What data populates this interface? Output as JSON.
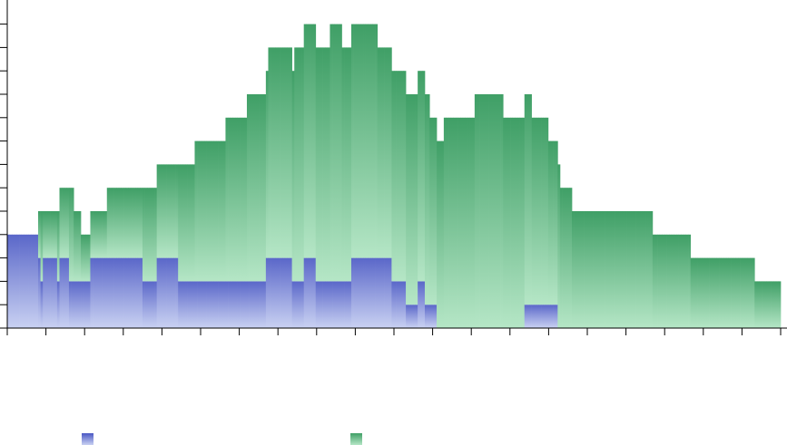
{
  "chart_data": {
    "type": "bar",
    "stacked": true,
    "title": "",
    "xlabel": "",
    "ylabel": "",
    "grid": false,
    "legend_position": "bottom",
    "bar_values_note": "",
    "series": [
      {
        "name": "",
        "color_light": "#c9d1f2",
        "color_dark": "#5a67c9",
        "values": [
          4,
          4,
          4,
          4,
          4,
          4,
          4,
          4,
          4,
          4,
          4,
          4,
          4,
          3,
          2,
          3,
          3,
          3,
          3,
          3,
          3,
          2,
          3,
          3,
          3,
          3,
          2,
          2,
          2,
          2,
          2,
          2,
          2,
          2,
          2,
          3,
          3,
          3,
          3,
          3,
          3,
          3,
          3,
          3,
          3,
          3,
          3,
          3,
          3,
          3,
          3,
          3,
          3,
          3,
          3,
          3,
          3,
          2,
          2,
          2,
          2,
          2,
          2,
          3,
          3,
          3,
          3,
          3,
          3,
          3,
          3,
          3,
          2,
          2,
          2,
          2,
          2,
          2,
          2,
          2,
          2,
          2,
          2,
          2,
          2,
          2,
          2,
          2,
          2,
          2,
          2,
          2,
          2,
          2,
          2,
          2,
          2,
          2,
          2,
          2,
          2,
          2,
          2,
          2,
          2,
          2,
          2,
          2,
          2,
          3,
          3,
          3,
          3,
          3,
          3,
          3,
          3,
          3,
          3,
          3,
          2,
          2,
          2,
          2,
          2,
          3,
          3,
          3,
          3,
          3,
          2,
          2,
          2,
          2,
          2,
          2,
          2,
          2,
          2,
          2,
          2,
          2,
          2,
          2,
          2,
          3,
          3,
          3,
          3,
          3,
          3,
          3,
          3,
          3,
          3,
          3,
          3,
          3,
          3,
          3,
          3,
          3,
          2,
          2,
          2,
          2,
          2,
          2,
          1,
          1,
          1,
          1,
          1,
          2,
          2,
          2,
          1,
          1,
          1,
          1,
          1,
          0,
          0,
          0,
          0,
          0,
          0,
          0,
          0,
          0,
          0,
          0,
          0,
          0,
          0,
          0,
          0,
          0,
          0,
          0,
          0,
          0,
          0,
          0,
          0,
          0,
          0,
          0,
          0,
          0,
          0,
          0,
          0,
          0,
          0,
          0,
          0,
          0,
          1,
          1,
          1,
          1,
          1,
          1,
          1,
          1,
          1,
          1,
          1,
          1,
          1,
          1,
          0,
          0,
          0,
          0,
          0,
          0,
          0,
          0,
          0,
          0,
          0,
          0,
          0,
          0,
          0,
          0,
          0,
          0,
          0,
          0,
          0,
          0,
          0,
          0,
          0,
          0,
          0,
          0,
          0,
          0,
          0,
          0,
          0,
          0,
          0,
          0,
          0,
          0,
          0,
          0,
          0,
          0,
          0,
          0,
          0,
          0,
          0,
          0,
          0,
          0,
          0,
          0,
          0,
          0,
          0,
          0,
          0,
          0,
          0,
          0,
          0,
          0,
          0,
          0,
          0,
          0,
          0,
          0,
          0,
          0,
          0,
          0,
          0,
          0,
          0,
          0,
          0,
          0,
          0,
          0,
          0,
          0,
          0,
          0,
          0,
          0,
          0,
          0,
          0,
          0,
          0,
          0,
          0,
          0
        ]
      },
      {
        "name": "",
        "color_light": "#b5e6c6",
        "color_dark": "#3f9f66",
        "values": [
          0,
          0,
          0,
          0,
          0,
          0,
          0,
          0,
          0,
          0,
          0,
          0,
          0,
          2,
          3,
          2,
          2,
          2,
          2,
          2,
          2,
          3,
          3,
          3,
          3,
          3,
          4,
          4,
          3,
          3,
          3,
          2,
          2,
          2,
          2,
          2,
          2,
          2,
          2,
          2,
          2,
          2,
          3,
          3,
          3,
          3,
          3,
          3,
          3,
          3,
          3,
          3,
          3,
          3,
          3,
          3,
          3,
          4,
          4,
          4,
          4,
          4,
          4,
          4,
          4,
          4,
          4,
          4,
          4,
          4,
          4,
          4,
          5,
          5,
          5,
          5,
          5,
          5,
          5,
          6,
          6,
          6,
          6,
          6,
          6,
          6,
          6,
          6,
          6,
          6,
          6,
          6,
          7,
          7,
          7,
          7,
          7,
          7,
          7,
          7,
          7,
          8,
          8,
          8,
          8,
          8,
          8,
          8,
          8,
          8,
          9,
          9,
          9,
          9,
          9,
          9,
          9,
          9,
          9,
          9,
          9,
          10,
          10,
          10,
          10,
          10,
          10,
          10,
          10,
          10,
          10,
          10,
          10,
          10,
          10,
          10,
          11,
          11,
          11,
          11,
          11,
          10,
          10,
          10,
          10,
          10,
          10,
          10,
          10,
          10,
          10,
          10,
          10,
          10,
          10,
          10,
          9,
          9,
          9,
          9,
          9,
          9,
          9,
          9,
          9,
          9,
          9,
          9,
          9,
          9,
          9,
          9,
          9,
          9,
          9,
          9,
          9,
          9,
          8,
          8,
          8,
          8,
          8,
          8,
          9,
          9,
          9,
          9,
          9,
          9,
          9,
          9,
          9,
          9,
          9,
          9,
          9,
          10,
          10,
          10,
          10,
          10,
          10,
          10,
          10,
          10,
          10,
          10,
          10,
          9,
          9,
          9,
          9,
          9,
          9,
          9,
          9,
          9,
          9,
          9,
          9,
          8,
          8,
          8,
          8,
          8,
          8,
          8,
          7,
          7,
          7,
          7,
          7,
          6,
          6,
          6,
          6,
          6,
          5,
          5,
          5,
          5,
          5,
          5,
          5,
          5,
          5,
          5,
          5,
          5,
          5,
          5,
          5,
          5,
          5,
          5,
          5,
          5,
          5,
          5,
          5,
          5,
          5,
          5,
          5,
          5,
          5,
          5,
          5,
          5,
          5,
          5,
          4,
          4,
          4,
          4,
          4,
          4,
          4,
          4,
          4,
          4,
          4,
          4,
          4,
          4,
          4,
          4,
          3,
          3,
          3,
          3,
          3,
          3,
          3,
          3,
          3,
          3,
          3,
          3,
          3,
          3,
          3,
          3,
          3,
          3,
          3,
          3,
          3,
          3,
          3,
          3,
          3,
          3,
          3,
          2,
          2,
          2,
          2,
          2,
          2,
          2,
          2,
          2,
          2,
          2,
          2,
          2,
          2,
          2,
          2,
          2,
          2,
          2,
          2,
          2,
          2,
          2,
          2,
          2,
          2,
          2,
          2,
          2,
          2,
          2,
          2,
          2,
          2,
          2,
          2,
          2,
          2,
          2,
          2,
          2,
          2,
          2,
          2,
          1
        ]
      }
    ],
    "ylim": [
      0,
      13
    ],
    "legend": [
      {
        "label": "",
        "color": "#7f89db"
      },
      {
        "label": "",
        "color": "#6fc28f"
      }
    ]
  }
}
